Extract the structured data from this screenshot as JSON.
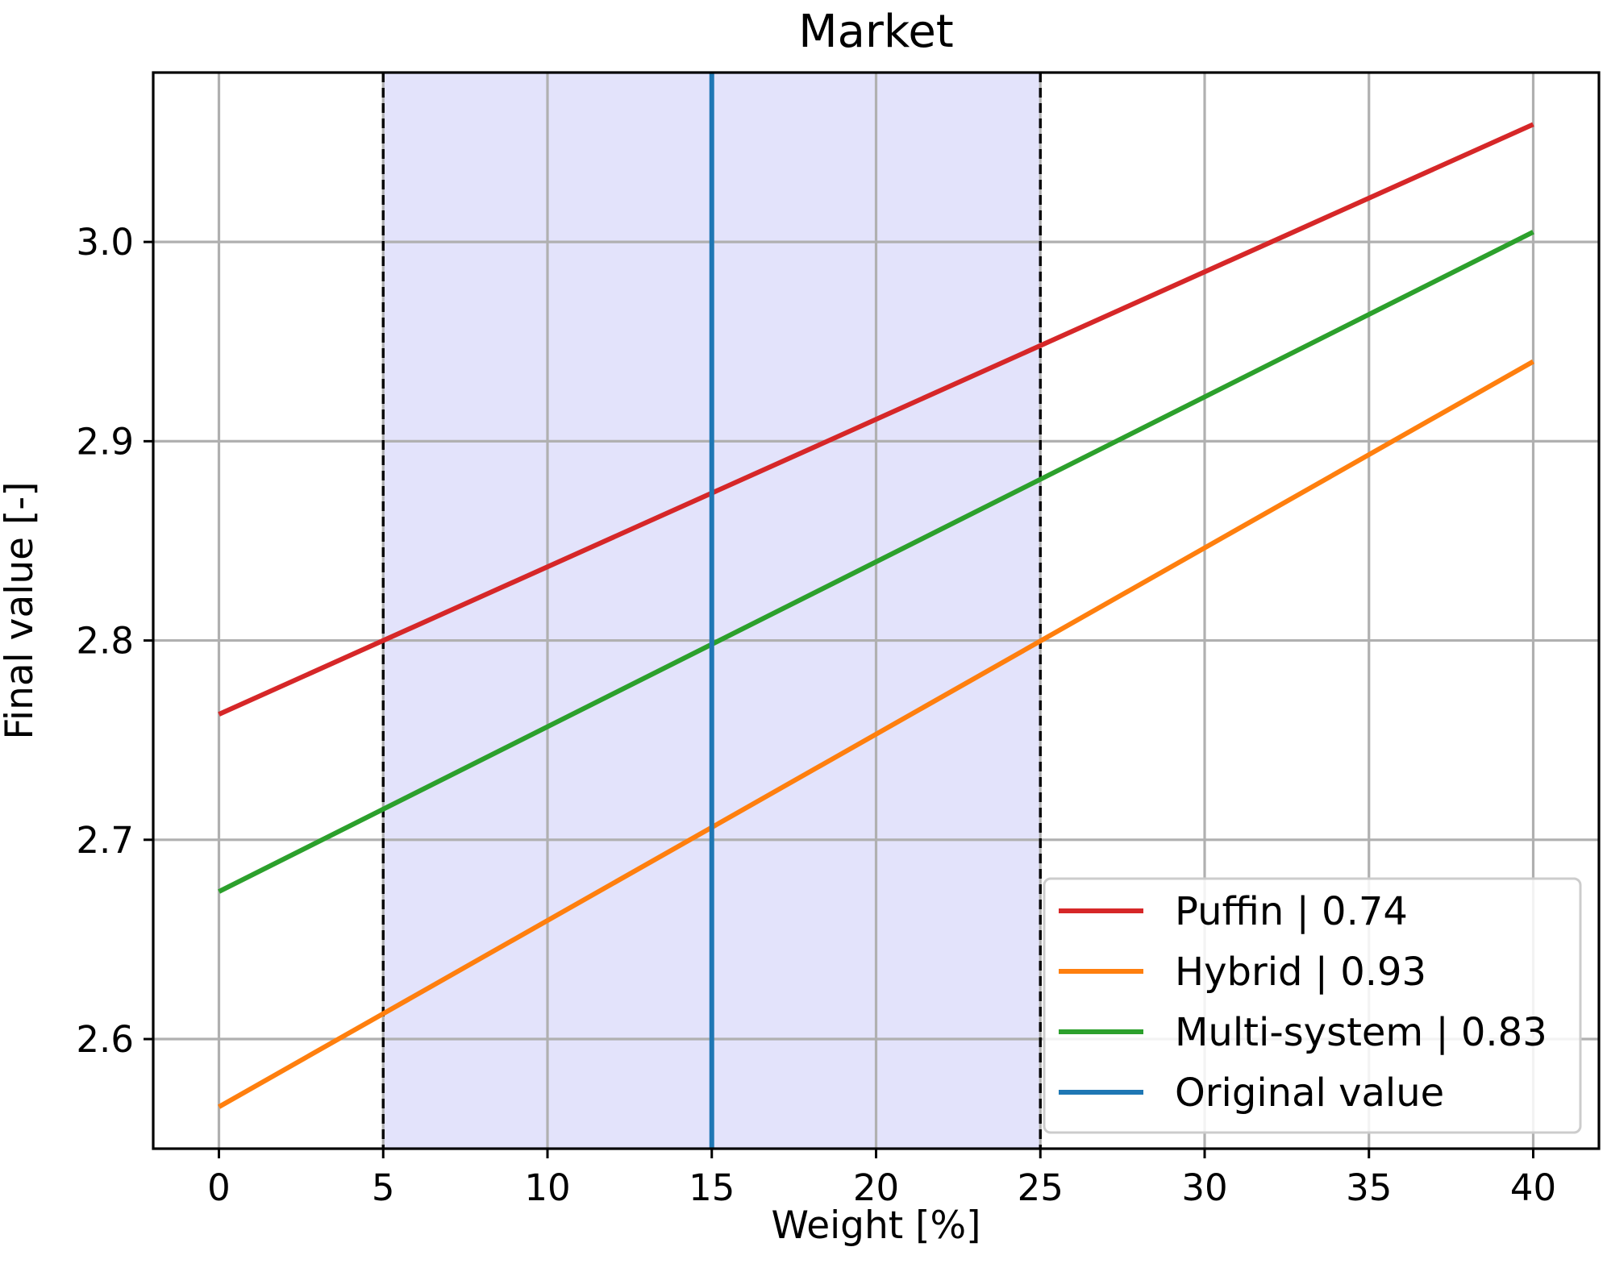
{
  "chart_data": {
    "type": "line",
    "title": "Market",
    "xlabel": "Weight [%]",
    "ylabel": "Final value [-]",
    "xlim": [
      -2,
      42
    ],
    "ylim": [
      2.545,
      3.085
    ],
    "xticks": [
      0,
      5,
      10,
      15,
      20,
      25,
      30,
      35,
      40
    ],
    "yticks": [
      2.6,
      2.7,
      2.8,
      2.9,
      3.0
    ],
    "grid": true,
    "shaded_region": {
      "x_start": 5,
      "x_end": 25,
      "color": "#e3e3fb"
    },
    "boundary_lines": {
      "x": [
        5,
        25
      ],
      "style": "dashed",
      "color": "#000000"
    },
    "series": [
      {
        "name": "Puffin | 0.74",
        "color": "#d62728",
        "x": [
          0,
          40
        ],
        "y": [
          2.763,
          3.059
        ]
      },
      {
        "name": "Hybrid | 0.93",
        "color": "#ff7f0e",
        "x": [
          0,
          40
        ],
        "y": [
          2.566,
          2.94
        ]
      },
      {
        "name": "Multi-system | 0.83",
        "color": "#2ca02c",
        "x": [
          0,
          40
        ],
        "y": [
          2.674,
          3.005
        ]
      }
    ],
    "vertical_line": {
      "name": "Original value",
      "x": 15,
      "color": "#1f77b4"
    },
    "legend": {
      "position": "bottom-right"
    }
  }
}
